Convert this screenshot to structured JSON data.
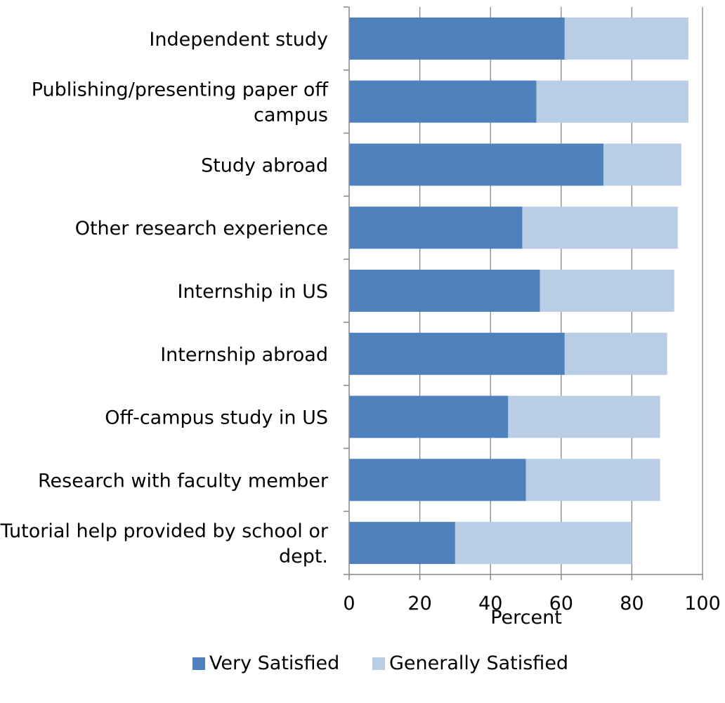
{
  "chart_data": {
    "type": "bar",
    "orientation": "horizontal",
    "stacked": true,
    "categories": [
      [
        "Independent study"
      ],
      [
        "Publishing/presenting paper off",
        "campus"
      ],
      [
        "Study abroad"
      ],
      [
        "Other research experience"
      ],
      [
        "Internship in US"
      ],
      [
        "Internship abroad"
      ],
      [
        "Off-campus study in US"
      ],
      [
        "Research with faculty member"
      ],
      [
        "Tutorial help provided by school or",
        "dept."
      ]
    ],
    "series": [
      {
        "name": "Very Satisfied",
        "color": "#4f81bd",
        "values": [
          61,
          53,
          72,
          49,
          54,
          61,
          45,
          50,
          30
        ]
      },
      {
        "name": "Generally Satisfied",
        "color": "#b9cde5",
        "values": [
          35,
          43,
          22,
          44,
          38,
          29,
          43,
          38,
          50
        ]
      }
    ],
    "title": "",
    "xlabel": "Percent",
    "ylabel": "",
    "xlim": [
      0,
      100
    ],
    "xticks": [
      0,
      20,
      40,
      60,
      80,
      100
    ],
    "grid": true,
    "legend_position": "bottom"
  }
}
